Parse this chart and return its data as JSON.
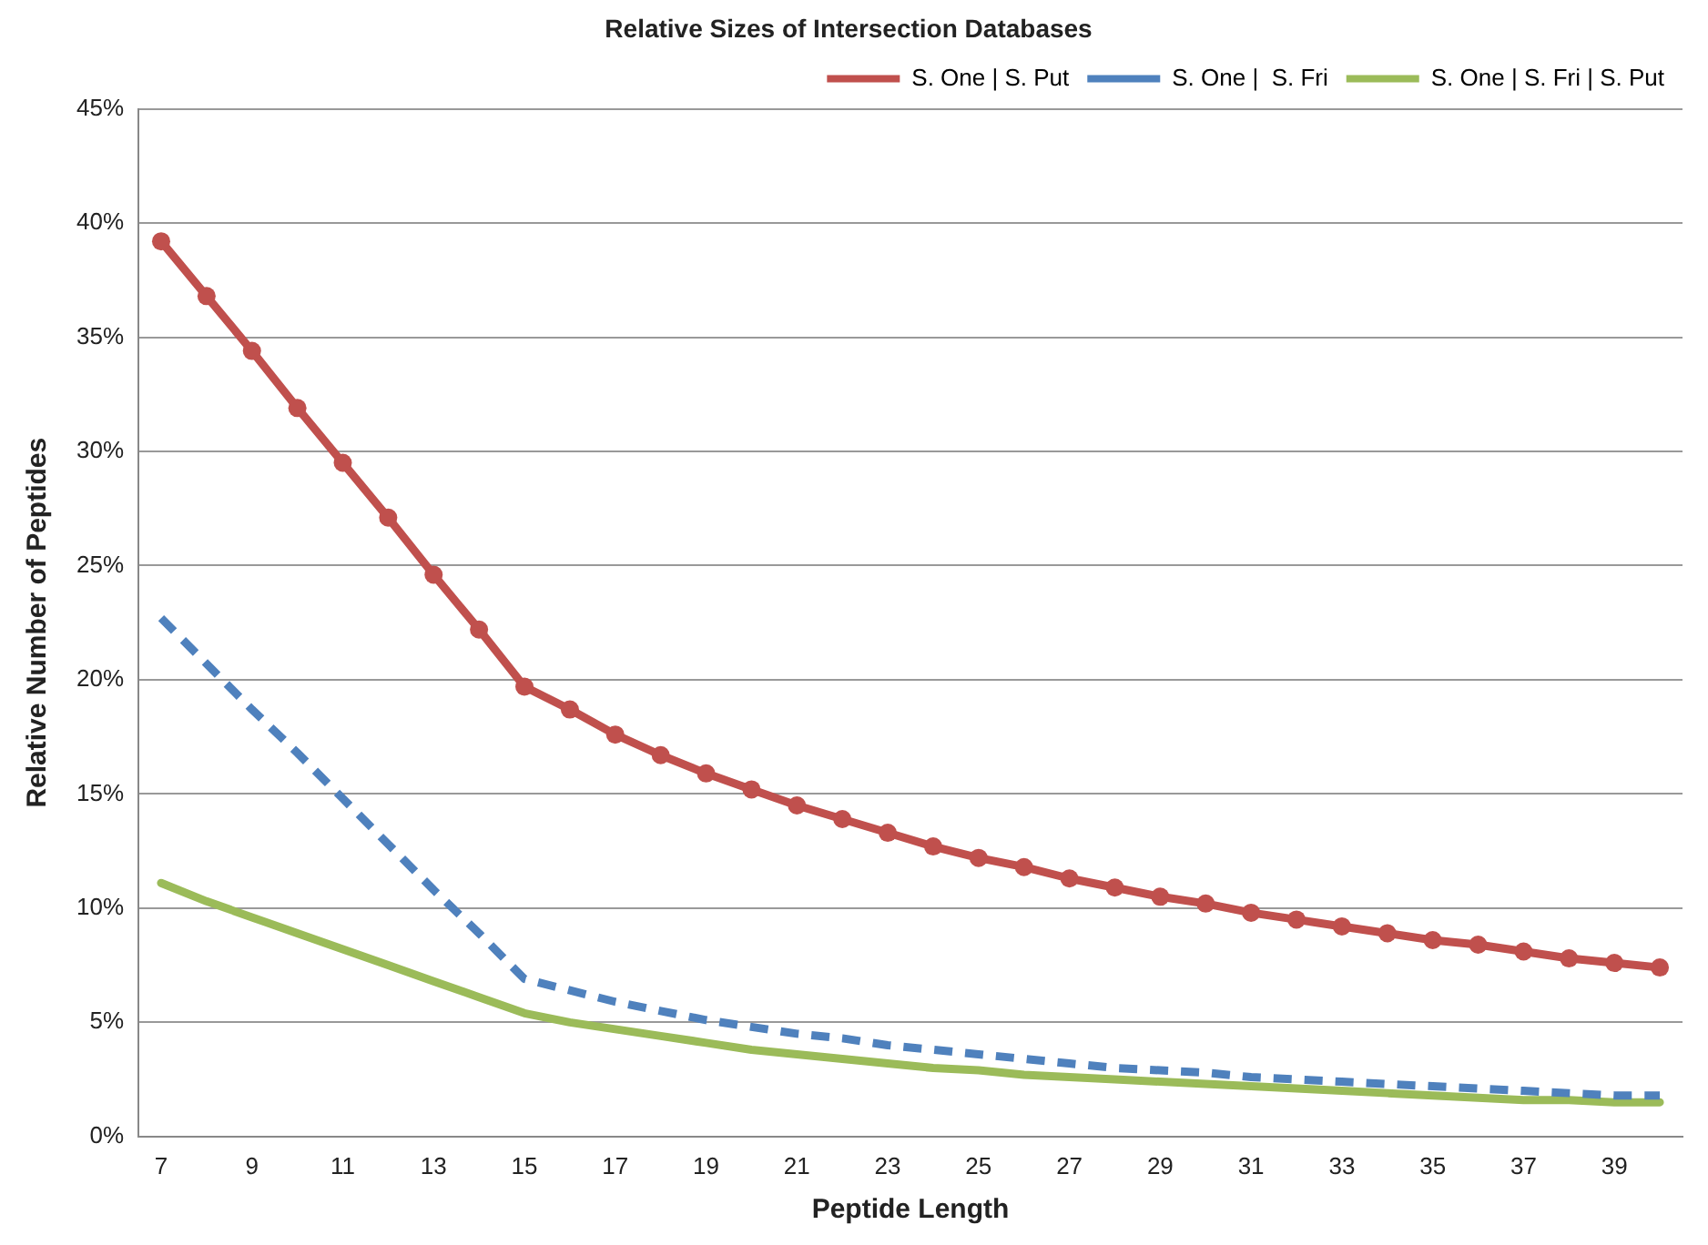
{
  "chart_data": {
    "type": "line",
    "title": "Relative Sizes of Intersection Databases",
    "xlabel": "Peptide Length",
    "ylabel": "Relative Number of Peptides",
    "categories": [
      "7",
      null,
      "9",
      null,
      "11",
      null,
      "13",
      null,
      "15",
      null,
      "17",
      null,
      "19",
      null,
      "21",
      null,
      "23",
      null,
      "25",
      null,
      "27",
      null,
      "29",
      null,
      "31",
      null,
      "33",
      null,
      "35",
      null,
      "37",
      null,
      "39",
      null
    ],
    "series": [
      {
        "name": "S. One | S. Put",
        "color": "#c0504d",
        "marker": "circle",
        "line_style": "solid",
        "values": [
          39.2,
          36.8,
          34.4,
          31.9,
          29.5,
          27.1,
          24.6,
          22.2,
          19.7,
          18.7,
          17.6,
          16.7,
          15.9,
          15.2,
          14.5,
          13.9,
          13.3,
          12.7,
          12.2,
          11.8,
          11.3,
          10.9,
          10.5,
          10.2,
          9.8,
          9.5,
          9.2,
          8.9,
          8.6,
          8.4,
          8.1,
          7.8,
          7.6,
          7.4
        ]
      },
      {
        "name": "S. One |  S. Fri",
        "color": "#4f81bd",
        "marker": "none",
        "line_style": "dashed",
        "values": [
          22.7,
          20.7,
          18.7,
          16.8,
          14.8,
          12.8,
          10.8,
          8.9,
          6.9,
          6.4,
          5.9,
          5.5,
          5.1,
          4.8,
          4.5,
          4.3,
          4.0,
          3.8,
          3.6,
          3.4,
          3.2,
          3.0,
          2.9,
          2.8,
          2.6,
          2.5,
          2.4,
          2.3,
          2.2,
          2.1,
          2.0,
          1.9,
          1.8,
          1.8
        ]
      },
      {
        "name": "S. One | S. Fri | S. Put",
        "color": "#9bbb59",
        "marker": "none",
        "line_style": "solid",
        "values": [
          11.1,
          10.3,
          9.6,
          8.9,
          8.2,
          7.5,
          6.8,
          6.1,
          5.4,
          5.0,
          4.7,
          4.4,
          4.1,
          3.8,
          3.6,
          3.4,
          3.2,
          3.0,
          2.9,
          2.7,
          2.6,
          2.5,
          2.4,
          2.3,
          2.2,
          2.1,
          2.0,
          1.9,
          1.8,
          1.7,
          1.6,
          1.6,
          1.5,
          1.5
        ]
      }
    ],
    "ylim": [
      0,
      45
    ],
    "yticks": [
      {
        "value": 0,
        "label": "0%"
      },
      {
        "value": 5,
        "label": "5%"
      },
      {
        "value": 10,
        "label": "10%"
      },
      {
        "value": 15,
        "label": "15%"
      },
      {
        "value": 20,
        "label": "20%"
      },
      {
        "value": 25,
        "label": "25%"
      },
      {
        "value": 30,
        "label": "30%"
      },
      {
        "value": 35,
        "label": "35%"
      },
      {
        "value": 40,
        "label": "40%"
      },
      {
        "value": 45,
        "label": "45%"
      }
    ],
    "grid": "y",
    "legend": "top right"
  }
}
